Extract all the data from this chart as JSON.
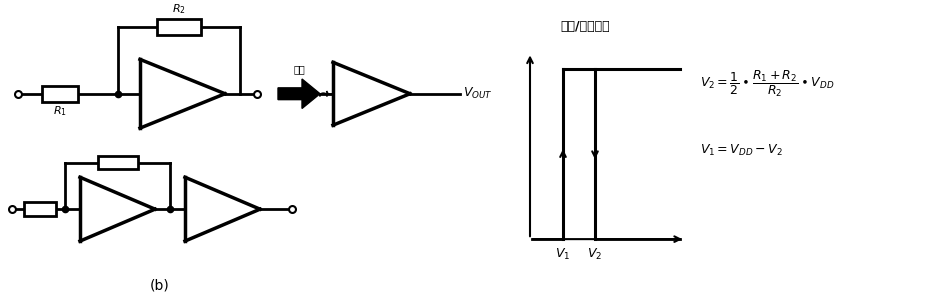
{
  "bg_color": "#ffffff",
  "title_text": "输入/输出特性",
  "label_vout": "$V_{OUT}$",
  "label_v1": "$V_1$",
  "label_v2": "$V_2$",
  "label_b": "(b)",
  "eq1_line1": "$V_2 = \\dfrac{1}{2} \\bullet \\dfrac{R_1 + R_2}{R_2} \\bullet V_{DD}$",
  "eq2": "$V_1 = V_{DD} - V_2$",
  "label_r1": "$R_1$",
  "label_r2": "$R_2$",
  "label_dengyu": "等于",
  "line_color": "#000000",
  "lw": 2.0,
  "fig_width": 9.39,
  "fig_height": 3.02,
  "dpi": 100
}
